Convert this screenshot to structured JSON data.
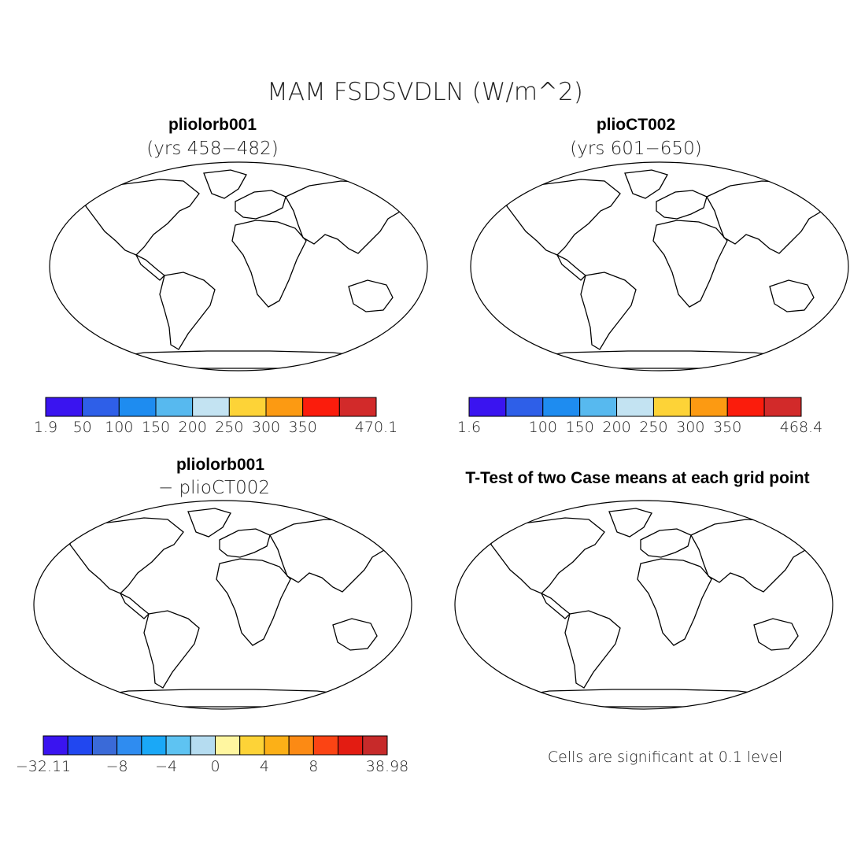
{
  "title": "MAM FSDSVDLN (W/m^2)",
  "colors": {
    "scale_main": [
      "#3a14f0",
      "#2e5fe8",
      "#1e8cf0",
      "#57b9ef",
      "#c3e3f2",
      "#fdd337",
      "#fc9a12",
      "#fb1c0c",
      "#d22a2a"
    ],
    "scale_diff": [
      "#3a14f0",
      "#2147f0",
      "#3a6ad8",
      "#2f8cf0",
      "#1aa8f7",
      "#5ec3f2",
      "#b5dcf0",
      "#fff6a0",
      "#fdd337",
      "#fcb017",
      "#fc8a14",
      "#fb4414",
      "#e31c12",
      "#c72a2a"
    ],
    "ocean": "#ffffff",
    "coast": "#000000",
    "signif": "#f0000c"
  },
  "chart_data": [
    {
      "type": "heatmap",
      "panel": "top-left",
      "title": "pliolorb001",
      "subtitle": "(yrs 458-482)",
      "colorbar_ticks": [
        "1.9",
        "50",
        "100",
        "150",
        "200",
        "250",
        "300",
        "350",
        "470.1"
      ],
      "range": [
        1.9,
        470.1
      ]
    },
    {
      "type": "heatmap",
      "panel": "top-right",
      "title": "plioCT002",
      "subtitle": "(yrs 601-650)",
      "colorbar_ticks": [
        "1.6",
        "100",
        "150",
        "200",
        "250",
        "300",
        "350",
        "468.4"
      ],
      "range": [
        1.6,
        468.4
      ]
    },
    {
      "type": "heatmap",
      "panel": "bottom-left",
      "title": "pliolorb001",
      "subtitle": "- plioCT002",
      "colorbar_ticks": [
        "-32.11",
        "-8",
        "-4",
        "0",
        "4",
        "8",
        "38.98"
      ],
      "range": [
        -32.11,
        38.98
      ]
    },
    {
      "type": "heatmap",
      "panel": "bottom-right",
      "title": "T-Test of two Case means at each grid point",
      "note": "Cells are significant at 0.1 level"
    }
  ]
}
